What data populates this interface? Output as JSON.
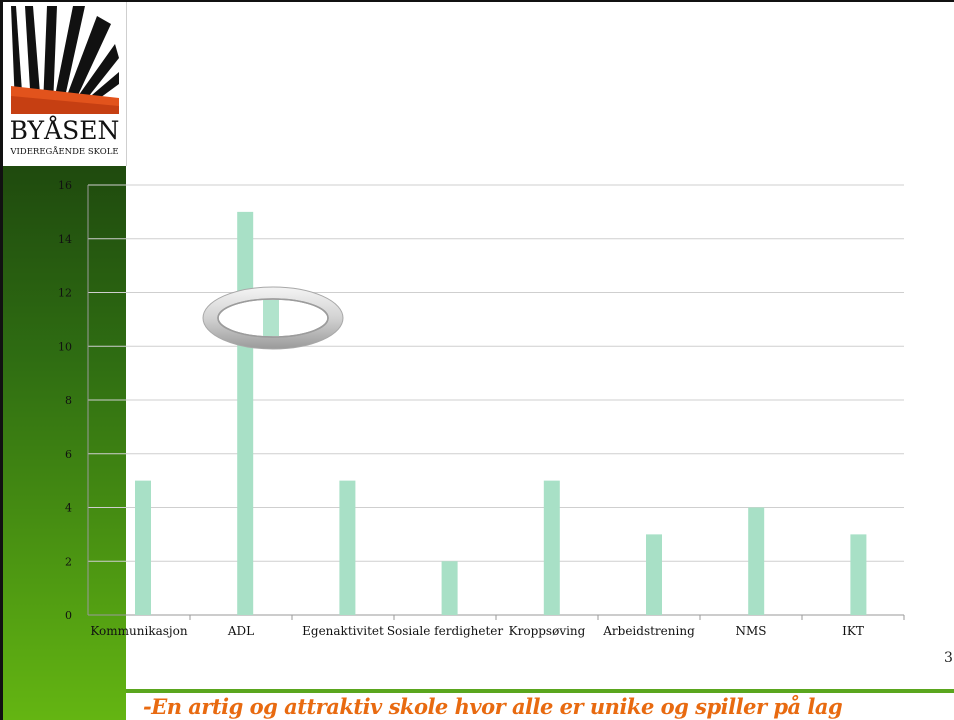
{
  "logo": {
    "name": "BYÅSEN",
    "subtitle": "VIDEREGÅENDE SKOLE"
  },
  "chart_data": {
    "type": "bar",
    "categories": [
      "Kommunikasjon",
      "ADL",
      "Egenaktivitet",
      "Sosiale ferdigheter",
      "Kroppsøving",
      "Arbeidstrening",
      "NMS",
      "IKT"
    ],
    "values": [
      5,
      15,
      5,
      2,
      5,
      3,
      4,
      3
    ],
    "ylim": [
      0,
      16
    ],
    "yticks": [
      0,
      2,
      4,
      6,
      8,
      10,
      12,
      14,
      16
    ],
    "grid": true,
    "legend": "none",
    "bar_color": "#a8e0c6",
    "annotation": "oval-ring-highlight on ADL bar"
  },
  "page_number": "3",
  "footer": {
    "slogan": "-En artig og attraktiv skole hvor alle er unike og spiller på lag",
    "slogan_color": "#e86a10",
    "line_color": "#5aa61e"
  }
}
